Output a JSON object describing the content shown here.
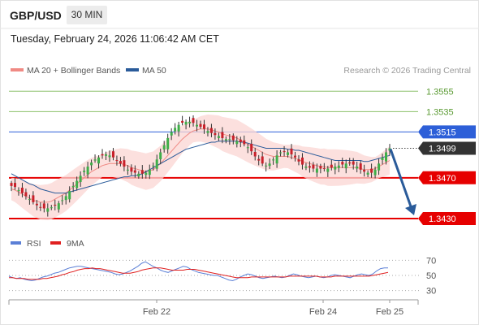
{
  "header": {
    "pair": "GBP/USD",
    "timeframe": "30 MIN"
  },
  "datetime": "Tuesday, February 24, 2026 11:06:42 AM CET",
  "legend": {
    "main": [
      {
        "label": "MA 20 + Bollinger Bands",
        "color": "#f08a84"
      },
      {
        "label": "MA 50",
        "color": "#2a5b9a"
      }
    ],
    "rsi": [
      {
        "label": "RSI",
        "color": "#5b7fd6"
      },
      {
        "label": "9MA",
        "color": "#e02020"
      }
    ]
  },
  "credit": "Research © 2026 Trading Central",
  "chart_data": {
    "type": "line",
    "price_ylim": [
      1.3418,
      1.3568
    ],
    "levels": [
      {
        "value": 1.3555,
        "label": "1.3555",
        "kind": "target",
        "color": "#8cc06a"
      },
      {
        "value": 1.3535,
        "label": "1.3535",
        "kind": "target",
        "color": "#8cc06a"
      },
      {
        "value": 1.3515,
        "label": "1.3515",
        "kind": "pivot",
        "color": "#2d5fd8"
      },
      {
        "value": 1.3499,
        "label": "1.3499",
        "kind": "last",
        "color": "#333333"
      },
      {
        "value": 1.347,
        "label": "1.3470",
        "kind": "support",
        "color": "#e60000"
      },
      {
        "value": 1.343,
        "label": "1.3430",
        "kind": "support",
        "color": "#e60000"
      }
    ],
    "forecast": {
      "from": 1.3499,
      "to": 1.343,
      "color": "#2a5b9a"
    },
    "x_ticks": [
      "Feb 22",
      "Feb 24",
      "Feb 25"
    ],
    "close": [
      1.3462,
      1.3461,
      1.3458,
      1.3455,
      1.3452,
      1.3449,
      1.3446,
      1.3443,
      1.3441,
      1.344,
      1.344,
      1.3441,
      1.3443,
      1.3445,
      1.3448,
      1.3452,
      1.3457,
      1.3462,
      1.3467,
      1.3472,
      1.3477,
      1.3481,
      1.3485,
      1.3488,
      1.349,
      1.3492,
      1.3493,
      1.3492,
      1.349,
      1.3487,
      1.3484,
      1.3481,
      1.3478,
      1.3476,
      1.3475,
      1.3474,
      1.3474,
      1.3475,
      1.3478,
      1.3482,
      1.3488,
      1.3495,
      1.3502,
      1.3509,
      1.3515,
      1.3519,
      1.3522,
      1.3524,
      1.3525,
      1.3525,
      1.3524,
      1.3522,
      1.352,
      1.3518,
      1.3516,
      1.3514,
      1.3512,
      1.3511,
      1.3509,
      1.3508,
      1.3508,
      1.3507,
      1.3506,
      1.3505,
      1.3503,
      1.35,
      1.3496,
      1.3491,
      1.3487,
      1.3484,
      1.3482,
      1.3484,
      1.3488,
      1.3492,
      1.3495,
      1.3496,
      1.3495,
      1.3493,
      1.349,
      1.3486,
      1.3483,
      1.3481,
      1.348,
      1.3479,
      1.3479,
      1.3479,
      1.3479,
      1.3479,
      1.348,
      1.3481,
      1.3482,
      1.3483,
      1.3484,
      1.3484,
      1.3483,
      1.3481,
      1.3478,
      1.3476,
      1.3475,
      1.3475,
      1.3478,
      1.3484,
      1.349,
      1.3495,
      1.3499
    ],
    "ma20": [
      1.3459,
      1.3458,
      1.3456,
      1.3454,
      1.3452,
      1.345,
      1.3448,
      1.3447,
      1.3446,
      1.3446,
      1.3446,
      1.3447,
      1.3449,
      1.3451,
      1.3453,
      1.3455,
      1.3458,
      1.3461,
      1.3464,
      1.3467,
      1.347,
      1.3473,
      1.3476,
      1.3478,
      1.348,
      1.3482,
      1.3483,
      1.3484,
      1.3484,
      1.3484,
      1.3484,
      1.3483,
      1.3482,
      1.348,
      1.3479,
      1.3478,
      1.3477,
      1.3476,
      1.3477,
      1.3478,
      1.3481,
      1.3484,
      1.3488,
      1.3492,
      1.3496,
      1.35,
      1.3504,
      1.3508,
      1.3511,
      1.3514,
      1.3516,
      1.3517,
      1.3518,
      1.3518,
      1.3518,
      1.3517,
      1.3516,
      1.3515,
      1.3513,
      1.3512,
      1.3511,
      1.351,
      1.3509,
      1.3507,
      1.3505,
      1.3503,
      1.3501,
      1.3499,
      1.3497,
      1.3495,
      1.3493,
      1.3492,
      1.3491,
      1.3491,
      1.3491,
      1.3491,
      1.3491,
      1.349,
      1.3489,
      1.3488,
      1.3486,
      1.3485,
      1.3484,
      1.3483,
      1.3482,
      1.3481,
      1.3481,
      1.348,
      1.348,
      1.348,
      1.348,
      1.348,
      1.348,
      1.348,
      1.348,
      1.348,
      1.3479,
      1.3478,
      1.3478,
      1.3478,
      1.3479,
      1.3481,
      1.3483,
      1.3485,
      1.3487
    ],
    "ma50": [
      1.3474,
      1.3472,
      1.347,
      1.3468,
      1.3466,
      1.3464,
      1.3463,
      1.3461,
      1.3459,
      1.3458,
      1.3457,
      1.3456,
      1.3455,
      1.3455,
      1.3455,
      1.3455,
      1.3456,
      1.3457,
      1.3458,
      1.3459,
      1.346,
      1.3461,
      1.3462,
      1.3463,
      1.3464,
      1.3465,
      1.3466,
      1.3467,
      1.3468,
      1.3469,
      1.347,
      1.3471,
      1.3471,
      1.3472,
      1.3472,
      1.3473,
      1.3474,
      1.3476,
      1.3478,
      1.348,
      1.3482,
      1.3484,
      1.3486,
      1.3488,
      1.349,
      1.3492,
      1.3494,
      1.3496,
      1.3498,
      1.3499,
      1.35,
      1.3501,
      1.3502,
      1.3503,
      1.3504,
      1.3505,
      1.3505,
      1.3506,
      1.3506,
      1.3506,
      1.3506,
      1.3506,
      1.3506,
      1.3505,
      1.3505,
      1.3504,
      1.3503,
      1.3502,
      1.3501,
      1.35,
      1.3499,
      1.3499,
      1.3499,
      1.3499,
      1.3499,
      1.3499,
      1.3498,
      1.3498,
      1.3497,
      1.3497,
      1.3496,
      1.3495,
      1.3494,
      1.3493,
      1.3492,
      1.3491,
      1.349,
      1.3489,
      1.3488,
      1.3487,
      1.3487,
      1.3487,
      1.3487,
      1.3487,
      1.3487,
      1.3487,
      1.3487,
      1.3486,
      1.3486,
      1.3487,
      1.3488,
      1.3489,
      1.349,
      1.3491,
      1.3492
    ],
    "rsi_ylim": [
      20,
      80
    ],
    "rsi_levels": [
      70,
      50,
      30
    ],
    "rsi": [
      49,
      47,
      46,
      47,
      45,
      44,
      43,
      44,
      46,
      48,
      49,
      51,
      53,
      54,
      56,
      58,
      60,
      61,
      62,
      62,
      61,
      60,
      59,
      58,
      57,
      56,
      55,
      54,
      52,
      51,
      52,
      54,
      56,
      59,
      62,
      66,
      68,
      65,
      62,
      60,
      57,
      55,
      54,
      56,
      58,
      60,
      62,
      61,
      58,
      56,
      54,
      53,
      52,
      51,
      50,
      50,
      48,
      46,
      44,
      43,
      45,
      48,
      50,
      52,
      51,
      49,
      47,
      46,
      47,
      48,
      49,
      48,
      47,
      48,
      50,
      52,
      51,
      49,
      48,
      47,
      48,
      49,
      48,
      47,
      48,
      50,
      51,
      50,
      49,
      48,
      47,
      49,
      51,
      52,
      51,
      50,
      52,
      56,
      59,
      60,
      60
    ],
    "rsi_ma9": [
      47,
      47,
      46,
      46,
      46,
      45,
      45,
      45,
      45,
      46,
      46,
      47,
      48,
      49,
      51,
      52,
      54,
      55,
      57,
      58,
      59,
      59,
      60,
      59,
      59,
      58,
      57,
      56,
      55,
      54,
      53,
      53,
      53,
      54,
      55,
      57,
      58,
      59,
      60,
      60,
      60,
      59,
      58,
      57,
      57,
      57,
      57,
      58,
      58,
      58,
      57,
      56,
      55,
      54,
      53,
      52,
      51,
      50,
      49,
      48,
      47,
      47,
      47,
      47,
      48,
      48,
      48,
      48,
      48,
      48,
      48,
      48,
      48,
      48,
      49,
      49,
      49,
      49,
      49,
      49,
      49,
      49,
      48,
      48,
      48,
      48,
      49,
      49,
      49,
      49,
      49,
      49,
      49,
      49,
      49,
      49,
      50,
      51,
      52,
      53,
      54
    ]
  }
}
